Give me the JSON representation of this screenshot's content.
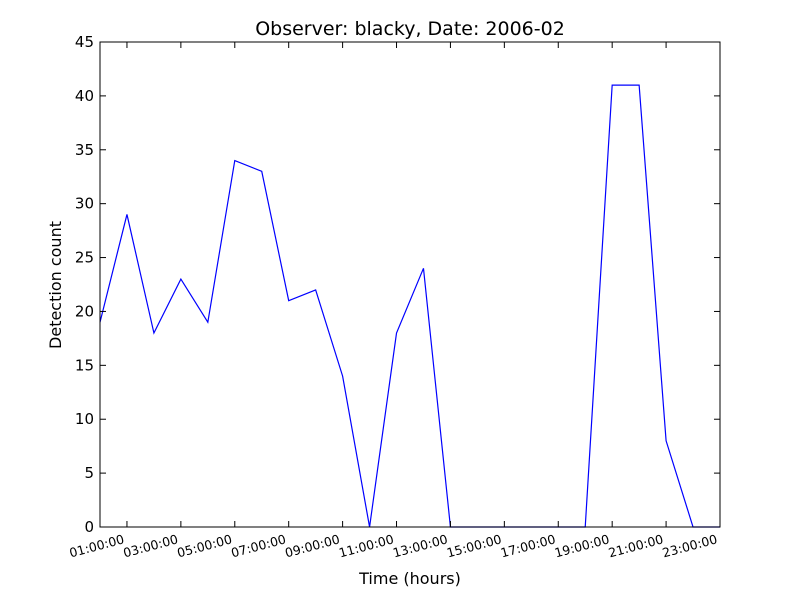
{
  "chart_data": {
    "type": "line",
    "title": "Observer: blacky, Date: 2006-02",
    "xlabel": "Time (hours)",
    "ylabel": "Detection count",
    "ylim": [
      0,
      45
    ],
    "yticks": [
      0,
      5,
      10,
      15,
      20,
      25,
      30,
      35,
      40,
      45
    ],
    "xlim": [
      "00:00:00",
      "23:00:00"
    ],
    "xtick_labels": [
      "01:00:00",
      "03:00:00",
      "05:00:00",
      "07:00:00",
      "09:00:00",
      "11:00:00",
      "13:00:00",
      "15:00:00",
      "17:00:00",
      "19:00:00",
      "21:00:00",
      "23:00:00"
    ],
    "grid": false,
    "series": [
      {
        "color": "#0000ff",
        "x": [
          "00:00:00",
          "01:00:00",
          "02:00:00",
          "03:00:00",
          "04:00:00",
          "05:00:00",
          "06:00:00",
          "07:00:00",
          "08:00:00",
          "09:00:00",
          "10:00:00",
          "11:00:00",
          "12:00:00",
          "13:00:00",
          "14:00:00",
          "15:00:00",
          "16:00:00",
          "17:00:00",
          "18:00:00",
          "19:00:00",
          "20:00:00",
          "21:00:00",
          "22:00:00",
          "23:00:00"
        ],
        "values": [
          19,
          29,
          18,
          23,
          19,
          34,
          33,
          21,
          22,
          14,
          0,
          18,
          24,
          0,
          0,
          0,
          0,
          0,
          0,
          41,
          41,
          8,
          0,
          0
        ]
      }
    ]
  }
}
